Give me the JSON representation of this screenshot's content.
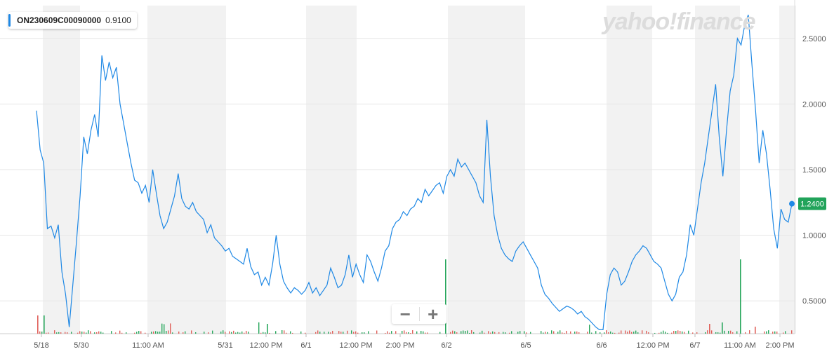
{
  "legend": {
    "symbol": "ON230609C00090000",
    "value": "0.9100",
    "color": "#1e88e5"
  },
  "watermark": "yahoo!finance",
  "zoom": {
    "minus": "−",
    "plus": "+"
  },
  "colors": {
    "line": "#1e88e5",
    "band": "#f2f2f2",
    "grid": "#e6e6e6",
    "up": "#26a65b",
    "down": "#e0605a",
    "badge": "#21a35a",
    "axis_text": "#555555"
  },
  "chart_data": {
    "type": "line",
    "series": [
      {
        "name": "ON230609C00090000",
        "values": [
          1.95,
          1.65,
          1.55,
          1.05,
          1.07,
          0.98,
          1.08,
          0.72,
          0.55,
          0.3,
          0.62,
          0.95,
          1.3,
          1.75,
          1.62,
          1.8,
          1.92,
          1.75,
          2.37,
          2.18,
          2.32,
          2.2,
          2.28,
          2.0,
          1.85,
          1.7,
          1.55,
          1.42,
          1.4,
          1.32,
          1.38,
          1.25,
          1.5,
          1.32,
          1.15,
          1.05,
          1.1,
          1.2,
          1.3,
          1.47,
          1.28,
          1.22,
          1.2,
          1.25,
          1.18,
          1.15,
          1.12,
          1.02,
          1.08,
          0.98,
          0.95,
          0.92,
          0.88,
          0.9,
          0.84,
          0.82,
          0.8,
          0.78,
          0.9,
          0.76,
          0.7,
          0.72,
          0.62,
          0.68,
          0.62,
          0.78,
          1.0,
          0.78,
          0.65,
          0.6,
          0.56,
          0.6,
          0.58,
          0.55,
          0.58,
          0.64,
          0.56,
          0.6,
          0.54,
          0.58,
          0.62,
          0.75,
          0.68,
          0.6,
          0.62,
          0.7,
          0.85,
          0.68,
          0.78,
          0.7,
          0.64,
          0.85,
          0.8,
          0.72,
          0.65,
          0.75,
          0.88,
          0.92,
          1.05,
          1.1,
          1.12,
          1.18,
          1.15,
          1.2,
          1.22,
          1.28,
          1.25,
          1.35,
          1.3,
          1.34,
          1.38,
          1.4,
          1.32,
          1.45,
          1.5,
          1.45,
          1.58,
          1.52,
          1.55,
          1.5,
          1.45,
          1.4,
          1.3,
          1.25,
          1.88,
          1.45,
          1.15,
          1.0,
          0.9,
          0.85,
          0.82,
          0.8,
          0.88,
          0.92,
          0.95,
          0.9,
          0.85,
          0.8,
          0.75,
          0.62,
          0.55,
          0.52,
          0.48,
          0.45,
          0.42,
          0.44,
          0.46,
          0.45,
          0.43,
          0.4,
          0.42,
          0.38,
          0.36,
          0.33,
          0.3,
          0.28,
          0.28,
          0.55,
          0.7,
          0.75,
          0.72,
          0.62,
          0.65,
          0.72,
          0.8,
          0.85,
          0.88,
          0.92,
          0.9,
          0.85,
          0.8,
          0.78,
          0.75,
          0.65,
          0.55,
          0.5,
          0.55,
          0.68,
          0.72,
          0.85,
          1.08,
          1.0,
          1.2,
          1.4,
          1.55,
          1.75,
          1.95,
          2.15,
          1.75,
          1.45,
          1.8,
          2.1,
          2.22,
          2.5,
          2.45,
          2.6,
          2.68,
          2.3,
          1.95,
          1.55,
          1.8,
          1.62,
          1.35,
          1.05,
          0.9,
          1.2,
          1.12,
          1.1,
          1.24
        ]
      }
    ],
    "x_ticks": [
      "5/18",
      "5/30",
      "11:00 AM",
      "5/31",
      "12:00 PM",
      "6/1",
      "12:00 PM",
      "2:00 PM",
      "6/2",
      "6/5",
      "6/6",
      "12:00 PM",
      "6/7",
      "11:00 AM",
      "2:00 PM"
    ],
    "y_ticks": [
      "0.5000",
      "1.0000",
      "1.5000",
      "2.0000",
      "2.5000"
    ],
    "ylim": [
      0.25,
      2.75
    ],
    "last_price_label": "1.2400",
    "grid": true,
    "legend_position": "top-left",
    "volume_bars": "small green/red bars along bottom"
  }
}
